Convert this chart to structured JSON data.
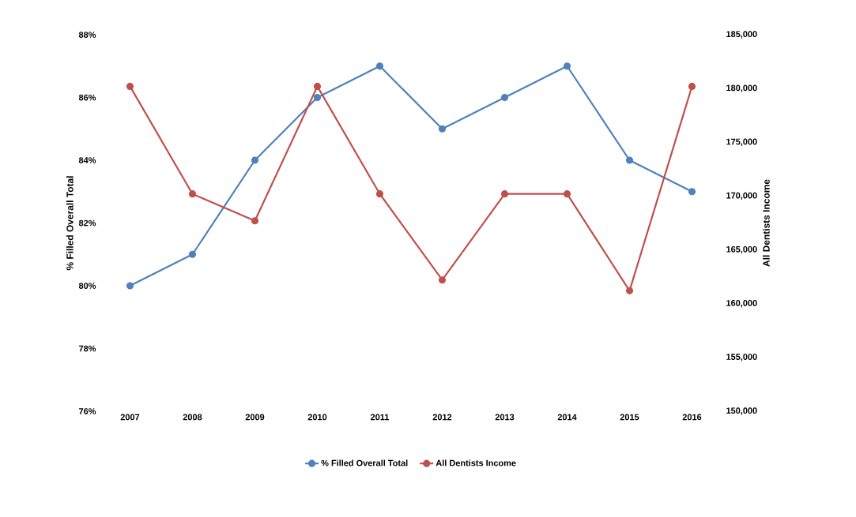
{
  "chart_data": {
    "type": "line",
    "ylabel": "% Filled Overall Total",
    "y2label": "All Dentists Income",
    "categories": [
      "2007",
      "2008",
      "2009",
      "2010",
      "2011",
      "2012",
      "2013",
      "2014",
      "2015",
      "2016"
    ],
    "series": [
      {
        "name": "% Filled Overall Total",
        "color": "#4f81bd",
        "values": [
          80,
          81,
          84,
          86,
          87,
          85,
          86,
          87,
          84,
          83
        ]
      },
      {
        "name": "All Dentists Income",
        "color": "#c0504d",
        "axis": "y2",
        "values": [
          180200,
          170200,
          167700,
          180200,
          170200,
          162200,
          170200,
          170200,
          161200,
          180200
        ]
      }
    ],
    "ylim": [
      76,
      88
    ],
    "yticks": [
      {
        "value": 76,
        "label": "76%"
      },
      {
        "value": 78,
        "label": "78%"
      },
      {
        "value": 80,
        "label": "80%"
      },
      {
        "value": 82,
        "label": "82%"
      },
      {
        "value": 84,
        "label": "84%"
      },
      {
        "value": 86,
        "label": "86%"
      },
      {
        "value": 88,
        "label": "88%"
      }
    ],
    "y2lim": [
      150000,
      185000
    ],
    "y2ticks": [
      {
        "value": 150000,
        "label": "150,000"
      },
      {
        "value": 155000,
        "label": "155,000"
      },
      {
        "value": 160000,
        "label": "160,000"
      },
      {
        "value": 165000,
        "label": "165,000"
      },
      {
        "value": 170000,
        "label": "170,000"
      },
      {
        "value": 175000,
        "label": "175,000"
      },
      {
        "value": 180000,
        "label": "180,000"
      },
      {
        "value": 185000,
        "label": "185,000"
      }
    ],
    "legend": "bottom",
    "marker": "circle",
    "line_style": "solid"
  }
}
